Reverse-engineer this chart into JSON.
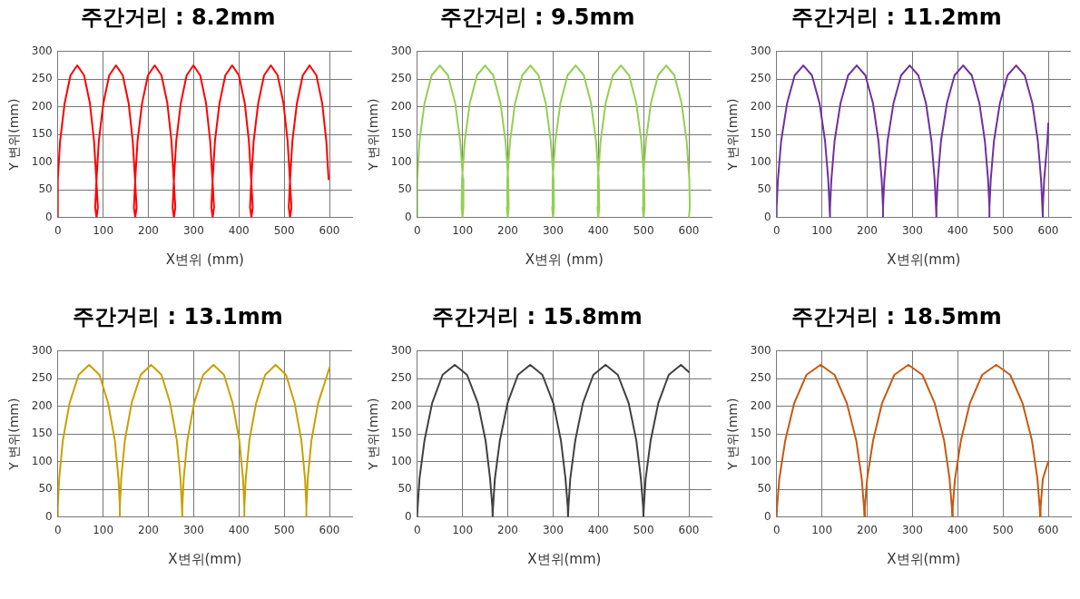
{
  "chart_data": [
    {
      "type": "line",
      "title": "주간거리 : 8.2mm",
      "xlabel": "X변위 (mm)",
      "ylabel": "Y 변위(mm)",
      "xlim": [
        0,
        650
      ],
      "xticks": [
        0,
        100,
        200,
        300,
        400,
        500,
        600
      ],
      "ylim": [
        0,
        300
      ],
      "yticks": [
        0,
        50,
        100,
        150,
        200,
        250,
        300
      ],
      "grid": true,
      "marker": "none",
      "series": [
        {
          "color": "#ff0000",
          "x": [
            0,
            0,
            0,
            5,
            15,
            28,
            43,
            58,
            71,
            80,
            85,
            88.5,
            85.5,
            82.5,
            85.5,
            90.5,
            100.5,
            113.5,
            128.5,
            143.5,
            156.5,
            165.5,
            170.5,
            174,
            171,
            168,
            171,
            176,
            186,
            199,
            214,
            229,
            242,
            251,
            256,
            259.5,
            256.5,
            253.5,
            256.5,
            261.5,
            271.5,
            284.5,
            299.5,
            314.5,
            327.5,
            336.5,
            341.5,
            345,
            342,
            339,
            342,
            347,
            357,
            370,
            385,
            400,
            413,
            422,
            427,
            430.5,
            427.5,
            424.5,
            427.5,
            432.5,
            442.5,
            455.5,
            470.5,
            485.5,
            498.5,
            507.5,
            512.5,
            516,
            513,
            510,
            513,
            518,
            528,
            541,
            556,
            571,
            584,
            593,
            598
          ],
          "values": [
            0,
            18,
            69,
            138,
            206,
            257,
            275,
            257,
            206,
            138,
            69,
            18,
            0,
            18,
            69,
            138,
            206,
            257,
            275,
            257,
            206,
            138,
            69,
            18,
            0,
            18,
            69,
            138,
            206,
            257,
            275,
            257,
            206,
            138,
            69,
            18,
            0,
            18,
            69,
            138,
            206,
            257,
            275,
            257,
            206,
            138,
            69,
            18,
            0,
            18,
            69,
            138,
            206,
            257,
            275,
            257,
            206,
            138,
            69,
            18,
            0,
            18,
            69,
            138,
            206,
            257,
            275,
            257,
            206,
            138,
            69,
            18,
            0,
            18,
            69,
            138,
            206,
            257,
            275,
            257,
            206,
            138,
            69
          ]
        }
      ]
    },
    {
      "type": "line",
      "title": "주간거리 : 9.5mm",
      "xlabel": "X변위 (mm)",
      "ylabel": "Y 변위(mm)",
      "xlim": [
        0,
        650
      ],
      "xticks": [
        0,
        100,
        200,
        300,
        400,
        500,
        600
      ],
      "ylim": [
        0,
        300
      ],
      "yticks": [
        0,
        50,
        100,
        150,
        200,
        250,
        300
      ],
      "grid": true,
      "marker": "none",
      "series": [
        {
          "color": "#92d050",
          "x": [
            0,
            0,
            0,
            5,
            16,
            32,
            50,
            68,
            84,
            95,
            101,
            102,
            100,
            98,
            99,
            105,
            116,
            132,
            150,
            168,
            184,
            195,
            201,
            202,
            200,
            198,
            199,
            205,
            216,
            232,
            250,
            268,
            284,
            295,
            301,
            302,
            300,
            298,
            299,
            305,
            316,
            332,
            350,
            368,
            384,
            395,
            401,
            402,
            400,
            398,
            399,
            405,
            416,
            432,
            450,
            468,
            484,
            495,
            501,
            502,
            500,
            498,
            499,
            505,
            516,
            532,
            550,
            568,
            584,
            595,
            601,
            602,
            600
          ],
          "values": [
            0,
            18,
            69,
            138,
            206,
            257,
            275,
            257,
            206,
            138,
            69,
            18,
            0,
            18,
            69,
            138,
            206,
            257,
            275,
            257,
            206,
            138,
            69,
            18,
            0,
            18,
            69,
            138,
            206,
            257,
            275,
            257,
            206,
            138,
            69,
            18,
            0,
            18,
            69,
            138,
            206,
            257,
            275,
            257,
            206,
            138,
            69,
            18,
            0,
            18,
            69,
            138,
            206,
            257,
            275,
            257,
            206,
            138,
            69,
            18,
            0,
            18,
            69,
            138,
            206,
            257,
            275,
            257,
            206,
            138,
            69,
            18,
            0
          ]
        }
      ]
    },
    {
      "type": "line",
      "title": "주간거리 : 11.2mm",
      "xlabel": "X변위(mm)",
      "ylabel": "Y 변위(mm)",
      "xlim": [
        0,
        650
      ],
      "xticks": [
        0,
        100,
        200,
        300,
        400,
        500,
        600
      ],
      "ylim": [
        0,
        300
      ],
      "yticks": [
        0,
        50,
        100,
        150,
        200,
        250,
        300
      ],
      "grid": true,
      "marker": "none",
      "series": [
        {
          "color": "#7030a0",
          "x": [
            0,
            0,
            3,
            10,
            23,
            40,
            59,
            78,
            95,
            107,
            114,
            117,
            118,
            118,
            121,
            128,
            141,
            158,
            177,
            196,
            213,
            225,
            232,
            235,
            235,
            235,
            238,
            245,
            258,
            275,
            294,
            313,
            330,
            342,
            349,
            352,
            353,
            353,
            356,
            363,
            376,
            393,
            412,
            431,
            448,
            460,
            467,
            470,
            470,
            470,
            473,
            480,
            493,
            510,
            529,
            548,
            565,
            577,
            584,
            587,
            588,
            588,
            591,
            598,
            600
          ],
          "values": [
            0,
            18,
            69,
            138,
            206,
            257,
            275,
            257,
            206,
            138,
            69,
            18,
            0,
            18,
            69,
            138,
            206,
            257,
            275,
            257,
            206,
            138,
            69,
            18,
            0,
            18,
            69,
            138,
            206,
            257,
            275,
            257,
            206,
            138,
            69,
            18,
            0,
            18,
            69,
            138,
            206,
            257,
            275,
            257,
            206,
            138,
            69,
            18,
            0,
            18,
            69,
            138,
            206,
            257,
            275,
            257,
            206,
            138,
            69,
            18,
            0,
            18,
            69,
            138,
            170
          ]
        }
      ]
    },
    {
      "type": "line",
      "title": "주간거리 : 13.1mm",
      "xlabel": "X변위(mm)",
      "ylabel": "Y 변위(mm)",
      "xlim": [
        0,
        650
      ],
      "xticks": [
        0,
        100,
        200,
        300,
        400,
        500,
        600
      ],
      "ylim": [
        0,
        300
      ],
      "yticks": [
        0,
        50,
        100,
        150,
        200,
        250,
        300
      ],
      "grid": true,
      "marker": "none",
      "series": [
        {
          "color": "#c9a000",
          "x": [
            0,
            0,
            3,
            11,
            26,
            46,
            69,
            92,
            111,
            126,
            134,
            137,
            137,
            137,
            140,
            148,
            163,
            183,
            206,
            229,
            248,
            263,
            271,
            274,
            275,
            275,
            278,
            286,
            301,
            321,
            344,
            367,
            386,
            401,
            409,
            412,
            412,
            412,
            415,
            423,
            438,
            458,
            481,
            504,
            523,
            538,
            546,
            549,
            549,
            549,
            552,
            560,
            575,
            595,
            600
          ],
          "values": [
            0,
            18,
            69,
            138,
            206,
            257,
            275,
            257,
            206,
            138,
            69,
            18,
            0,
            18,
            69,
            138,
            206,
            257,
            275,
            257,
            206,
            138,
            69,
            18,
            0,
            18,
            69,
            138,
            206,
            257,
            275,
            257,
            206,
            138,
            69,
            18,
            0,
            18,
            69,
            138,
            206,
            257,
            275,
            257,
            206,
            138,
            69,
            18,
            0,
            18,
            69,
            138,
            206,
            257,
            270
          ]
        }
      ]
    },
    {
      "type": "line",
      "title": "주간거리 : 15.8mm",
      "xlabel": "X변위(mm)",
      "ylabel": "Y 변위(mm)",
      "xlim": [
        0,
        650
      ],
      "xticks": [
        0,
        100,
        200,
        300,
        400,
        500,
        600
      ],
      "ylim": [
        0,
        300
      ],
      "yticks": [
        0,
        50,
        100,
        150,
        200,
        250,
        300
      ],
      "grid": true,
      "marker": "none",
      "series": [
        {
          "color": "#404040",
          "x": [
            0,
            1,
            5,
            16,
            33,
            56,
            83,
            110,
            134,
            151,
            161,
            166,
            166.5,
            167.5,
            171.5,
            182.5,
            199.5,
            222.5,
            249.5,
            276.5,
            300.5,
            317.5,
            327.5,
            332.5,
            333,
            334,
            338,
            349,
            366,
            389,
            416,
            443,
            467,
            484,
            494,
            499,
            499.5,
            500.5,
            504.5,
            515.5,
            532.5,
            555.5,
            582.5,
            600
          ],
          "values": [
            0,
            18,
            69,
            138,
            206,
            257,
            275,
            257,
            206,
            138,
            69,
            18,
            0,
            18,
            69,
            138,
            206,
            257,
            275,
            257,
            206,
            138,
            69,
            18,
            0,
            18,
            69,
            138,
            206,
            257,
            275,
            257,
            206,
            138,
            69,
            18,
            0,
            18,
            69,
            138,
            206,
            257,
            275,
            262
          ]
        }
      ]
    },
    {
      "type": "line",
      "title": "주간거리 : 18.5mm",
      "xlabel": "X변위(mm)",
      "ylabel": "Y 변위(mm)",
      "xlim": [
        0,
        650
      ],
      "xticks": [
        0,
        100,
        200,
        300,
        400,
        500,
        600
      ],
      "ylim": [
        0,
        300
      ],
      "yticks": [
        0,
        50,
        100,
        150,
        200,
        250,
        300
      ],
      "grid": true,
      "marker": "none",
      "series": [
        {
          "color": "#c55a11",
          "x": [
            0,
            1,
            6,
            19,
            39,
            66,
            97,
            128,
            155,
            176,
            188,
            193,
            194,
            195,
            200,
            213,
            233,
            260,
            291,
            322,
            349,
            370,
            382,
            387,
            388,
            389,
            394,
            407,
            427,
            454,
            485,
            516,
            543,
            564,
            576,
            581,
            582,
            583,
            588,
            600
          ],
          "values": [
            0,
            18,
            69,
            138,
            206,
            257,
            275,
            257,
            206,
            138,
            69,
            18,
            0,
            18,
            69,
            138,
            206,
            257,
            275,
            257,
            206,
            138,
            69,
            18,
            0,
            18,
            69,
            138,
            206,
            257,
            275,
            257,
            206,
            138,
            69,
            18,
            0,
            18,
            69,
            100
          ]
        }
      ]
    }
  ]
}
